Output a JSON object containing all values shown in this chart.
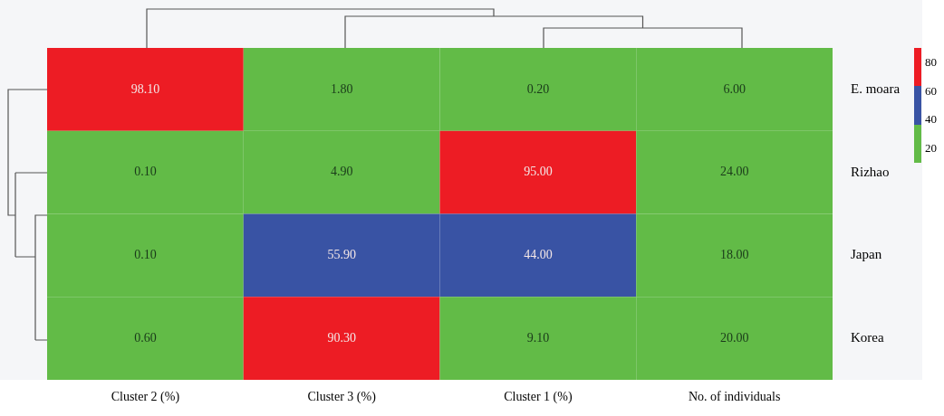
{
  "chart_data": {
    "type": "heatmap",
    "categories": [
      "Cluster 2 (%)",
      "Cluster 3 (%)",
      "Cluster 1 (%)",
      "No. of individuals"
    ],
    "y_categories": [
      "E. moara",
      "Rizhao",
      "Japan",
      "Korea"
    ],
    "cells": [
      [
        98.1,
        1.8,
        0.2,
        6.0
      ],
      [
        0.1,
        4.9,
        95.0,
        24.0
      ],
      [
        0.1,
        55.9,
        44.0,
        18.0
      ],
      [
        0.6,
        90.3,
        9.1,
        20.0
      ]
    ],
    "cell_labels": [
      [
        "98.10",
        "1.80",
        "0.20",
        "6.00"
      ],
      [
        "0.10",
        "4.90",
        "95.00",
        "24.00"
      ],
      [
        "0.10",
        "55.90",
        "44.00",
        "18.00"
      ],
      [
        "0.60",
        "90.30",
        "9.10",
        "20.00"
      ]
    ],
    "colors": [
      [
        "#ed1c24",
        "#62bb47",
        "#62bb47",
        "#62bb47"
      ],
      [
        "#62bb47",
        "#62bb47",
        "#ed1c24",
        "#62bb47"
      ],
      [
        "#62bb47",
        "#3953a4",
        "#3953a4",
        "#62bb47"
      ],
      [
        "#62bb47",
        "#ed1c24",
        "#62bb47",
        "#62bb47"
      ]
    ],
    "annotations": [
      "80",
      "60",
      "40",
      "20"
    ]
  }
}
